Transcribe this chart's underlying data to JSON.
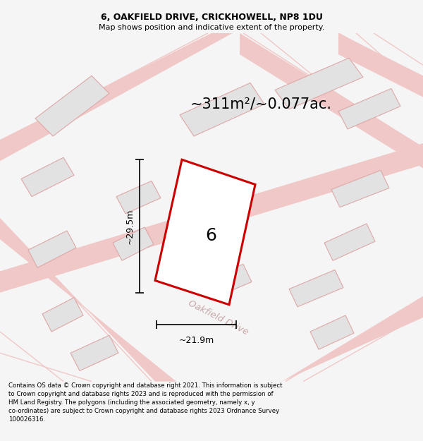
{
  "title_line1": "6, OAKFIELD DRIVE, CRICKHOWELL, NP8 1DU",
  "title_line2": "Map shows position and indicative extent of the property.",
  "area_label": "~311m²/~0.077ac.",
  "plot_number": "6",
  "dim_vertical": "~29.5m",
  "dim_horizontal": "~21.9m",
  "street_label": "Oakfield Drive",
  "footer_text": "Contains OS data © Crown copyright and database right 2021. This information is subject to Crown copyright and database rights 2023 and is reproduced with the permission of HM Land Registry. The polygons (including the associated geometry, namely x, y co-ordinates) are subject to Crown copyright and database rights 2023 Ordnance Survey 100026316.",
  "bg_color": "#f5f5f5",
  "map_bg_color": "#ffffff",
  "plot_color": "#cc0000",
  "road_color": "#f0c8c8",
  "building_color": "#e2e2e2",
  "building_outline": "#dda8a8",
  "fig_width": 6.0,
  "fig_height": 6.25,
  "title_fs": 9,
  "subtitle_fs": 8,
  "area_fs": 15,
  "label_fs": 18,
  "dim_fs": 9,
  "footer_fs": 6.2
}
